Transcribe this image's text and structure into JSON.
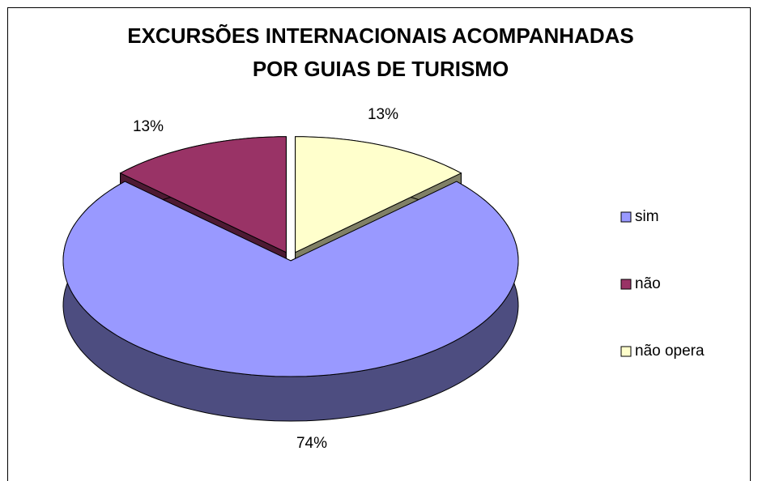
{
  "chart_data": {
    "type": "pie",
    "title": [
      "EXCURSÕES INTERNACIONAIS ACOMPANHADAS",
      "POR GUIAS DE TURISMO"
    ],
    "categories": [
      "sim",
      "não",
      "não opera"
    ],
    "values": [
      74,
      13,
      13
    ],
    "value_labels": [
      "74%",
      "13%",
      "13%"
    ],
    "colors": [
      "#9999ff",
      "#993366",
      "#ffffcc"
    ],
    "legend": "right"
  }
}
